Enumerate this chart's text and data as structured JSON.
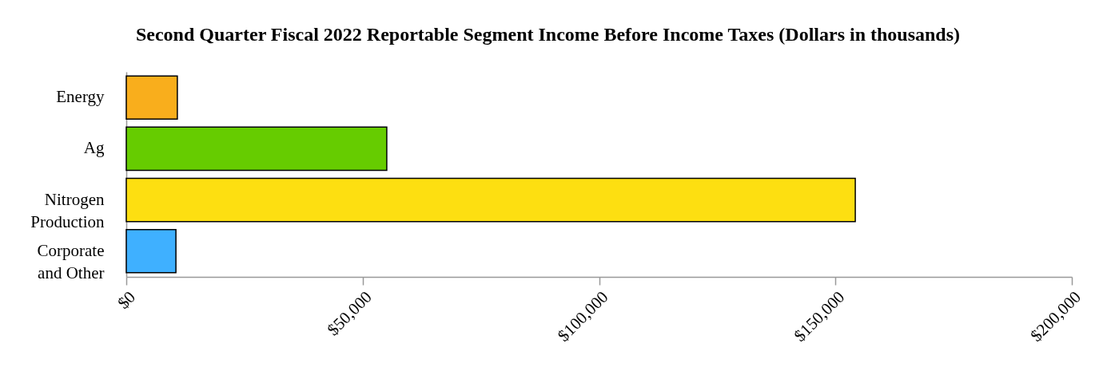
{
  "chart_data": {
    "type": "bar",
    "orientation": "horizontal",
    "title": "Second Quarter Fiscal 2022 Reportable Segment Income Before Income Taxes (Dollars in thousands)",
    "categories": [
      "Energy",
      "Ag",
      "Nitrogen Production",
      "Corporate and Other"
    ],
    "values": [
      10800,
      55100,
      154200,
      10500
    ],
    "colors": [
      "#f9ae1c",
      "#66cc00",
      "#fddf11",
      "#3fb0ff"
    ],
    "xlim": [
      0,
      200000
    ],
    "xticks": [
      {
        "value": 0,
        "label": "$0"
      },
      {
        "value": 50000,
        "label": "$50,000"
      },
      {
        "value": 100000,
        "label": "$100,000"
      },
      {
        "value": 150000,
        "label": "$150,000"
      },
      {
        "value": 200000,
        "label": "$200,000"
      }
    ]
  }
}
